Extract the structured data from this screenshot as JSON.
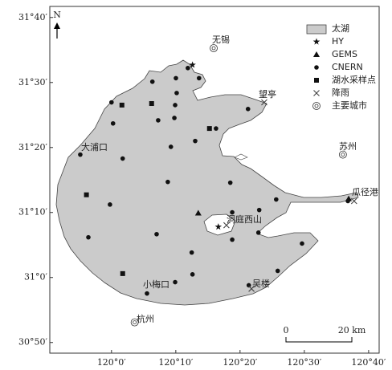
{
  "map": {
    "xlim": [
      119.84,
      120.694
    ],
    "ylim": [
      30.806,
      31.695
    ],
    "xticks": [
      {
        "value": 120.0,
        "label": "120°0′"
      },
      {
        "value": 120.1667,
        "label": "120°10′"
      },
      {
        "value": 120.3333,
        "label": "120°20′"
      },
      {
        "value": 120.5,
        "label": "120°30′"
      },
      {
        "value": 120.6667,
        "label": "120°40′"
      }
    ],
    "yticks": [
      {
        "value": 31.6667,
        "label": "31°40′"
      },
      {
        "value": 31.5,
        "label": "31°30′"
      },
      {
        "value": 31.3333,
        "label": "31°20′"
      },
      {
        "value": 31.1667,
        "label": "31°10′"
      },
      {
        "value": 31.0,
        "label": "31°0′"
      },
      {
        "value": 30.8333,
        "label": "30°50′"
      }
    ],
    "north": "N",
    "lake": {
      "name": "太湖",
      "color": "#cbcbcb"
    },
    "series": [
      {
        "name": "HY",
        "marker": "star",
        "lon": [
          120.21,
          120.277
        ],
        "lat": [
          31.545,
          31.13
        ]
      },
      {
        "name": "GEMS",
        "marker": "triangle",
        "lon": [
          120.225,
          120.615
        ],
        "lat": [
          31.165,
          31.202
        ]
      },
      {
        "name": "CNERN",
        "marker": "circle",
        "lon": [
          120.106,
          120.167,
          120.169,
          120.198,
          120.227,
          120.165,
          120.163,
          120.121,
          120.0,
          120.004,
          120.271,
          120.217,
          120.154,
          120.029,
          119.919,
          120.146,
          120.308,
          119.996,
          120.117,
          120.313,
          120.383,
          120.427,
          120.313,
          120.381,
          119.94,
          120.208,
          120.165,
          120.092,
          120.356,
          120.431,
          120.494,
          120.21,
          120.354,
          120.613
        ],
        "lat": [
          31.502,
          31.511,
          31.473,
          31.537,
          31.511,
          31.442,
          31.409,
          31.403,
          31.449,
          31.395,
          31.382,
          31.35,
          31.335,
          31.305,
          31.315,
          31.245,
          31.243,
          31.187,
          31.111,
          31.167,
          31.173,
          31.2,
          31.097,
          31.115,
          31.103,
          31.064,
          30.988,
          30.959,
          30.98,
          31.017,
          31.087,
          31.008,
          31.432,
          31.196
        ]
      },
      {
        "name": "湖水采样点",
        "marker": "square",
        "lon": [
          120.027,
          120.104,
          120.254,
          119.935,
          120.029
        ],
        "lat": [
          31.442,
          31.446,
          31.382,
          31.212,
          31.01
        ]
      },
      {
        "name": "降雨",
        "marker": "x",
        "lon": [
          120.396,
          120.298,
          120.629,
          120.363
        ],
        "lat": [
          31.449,
          31.134,
          31.196,
          30.971
        ]
      },
      {
        "name": "主要城市",
        "marker": "target",
        "lon": [
          120.265,
          120.6,
          120.06
        ],
        "lat": [
          31.588,
          31.315,
          30.885
        ]
      }
    ],
    "places": [
      "无锡",
      "望亭",
      "苏州",
      "大浦口",
      "瓜径港",
      "洞庭西山",
      "小梅口",
      "吴楼",
      "杭州"
    ],
    "scale_bar": {
      "labels": [
        "0",
        "20 km"
      ]
    }
  }
}
